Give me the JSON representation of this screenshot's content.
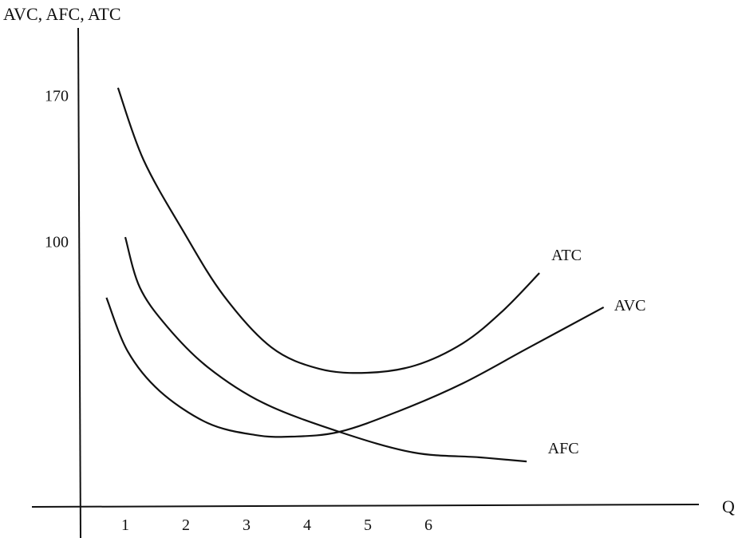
{
  "chart_data": {
    "type": "line",
    "title": "",
    "ylabel": "AVC, AFC, ATC",
    "xlabel": "Q",
    "x_ticks": [
      1,
      2,
      3,
      4,
      5,
      6
    ],
    "y_ticks": [
      100,
      170
    ],
    "grid": false,
    "legend": "curve labels at right ends",
    "line_color": "#111111",
    "series": [
      {
        "name": "ATC",
        "points": [
          [
            0.88,
            173.7
          ],
          [
            1.3,
            139.2
          ],
          [
            1.96,
            104.8
          ],
          [
            2.62,
            74.2
          ],
          [
            3.41,
            49.3
          ],
          [
            4.2,
            39.0
          ],
          [
            4.99,
            37.1
          ],
          [
            5.78,
            40.6
          ],
          [
            6.57,
            51.3
          ],
          [
            7.22,
            66.6
          ],
          [
            7.83,
            84.9
          ]
        ]
      },
      {
        "name": "AVC",
        "points": [
          [
            0.69,
            73.1
          ],
          [
            1.04,
            47.4
          ],
          [
            1.57,
            28.3
          ],
          [
            2.36,
            13.0
          ],
          [
            3.14,
            7.3
          ],
          [
            3.74,
            6.5
          ],
          [
            4.53,
            8.8
          ],
          [
            5.51,
            18.7
          ],
          [
            6.57,
            32.1
          ],
          [
            7.62,
            48.6
          ],
          [
            8.89,
            68.5
          ]
        ]
      },
      {
        "name": "AFC",
        "points": [
          [
            1.0,
            102.1
          ],
          [
            1.24,
            78.0
          ],
          [
            1.7,
            58.9
          ],
          [
            2.36,
            39.8
          ],
          [
            3.28,
            22.6
          ],
          [
            4.53,
            8.8
          ],
          [
            5.75,
            -1.1
          ],
          [
            6.83,
            -3.4
          ],
          [
            7.62,
            -5.4
          ]
        ]
      }
    ]
  }
}
